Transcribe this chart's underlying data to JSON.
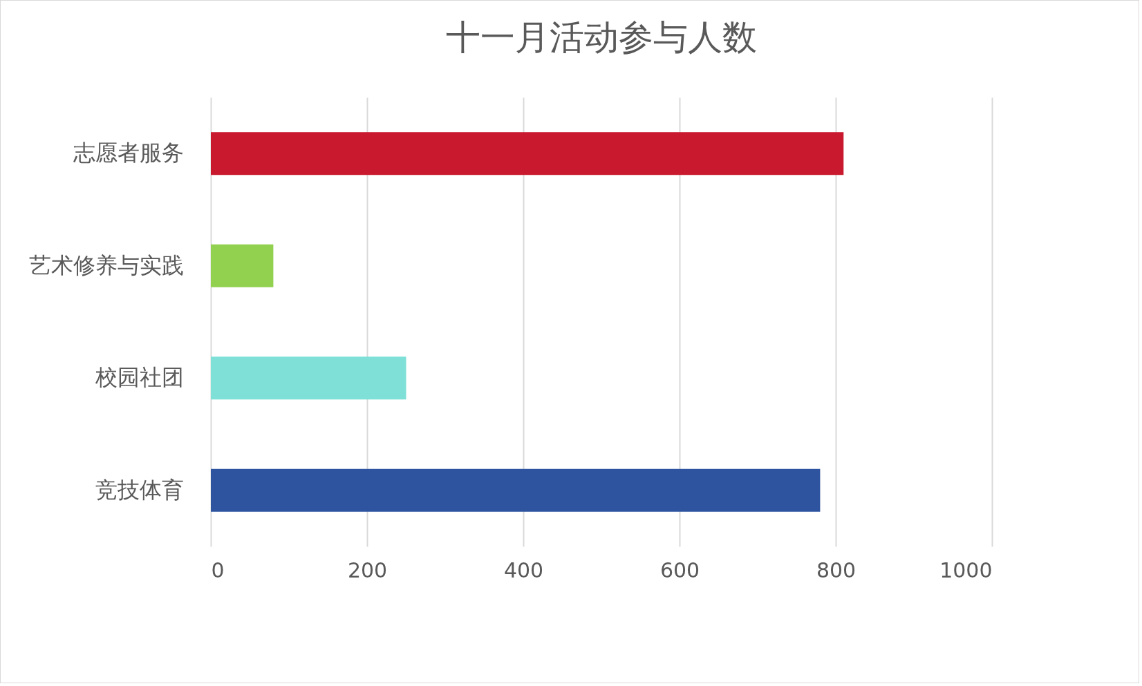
{
  "chart_data": {
    "type": "bar",
    "orientation": "horizontal",
    "title": "十一月活动参与人数",
    "categories": [
      "志愿者服务",
      "艺术修养与实践",
      "校园社团",
      "竞技体育"
    ],
    "values": [
      810,
      80,
      250,
      780
    ],
    "colors": [
      "#c8192e",
      "#92d050",
      "#7fe0d8",
      "#2e54a0"
    ],
    "xlim": [
      0,
      1000
    ],
    "xticks": [
      0,
      200,
      400,
      600,
      800,
      1000
    ],
    "grid": "x"
  }
}
